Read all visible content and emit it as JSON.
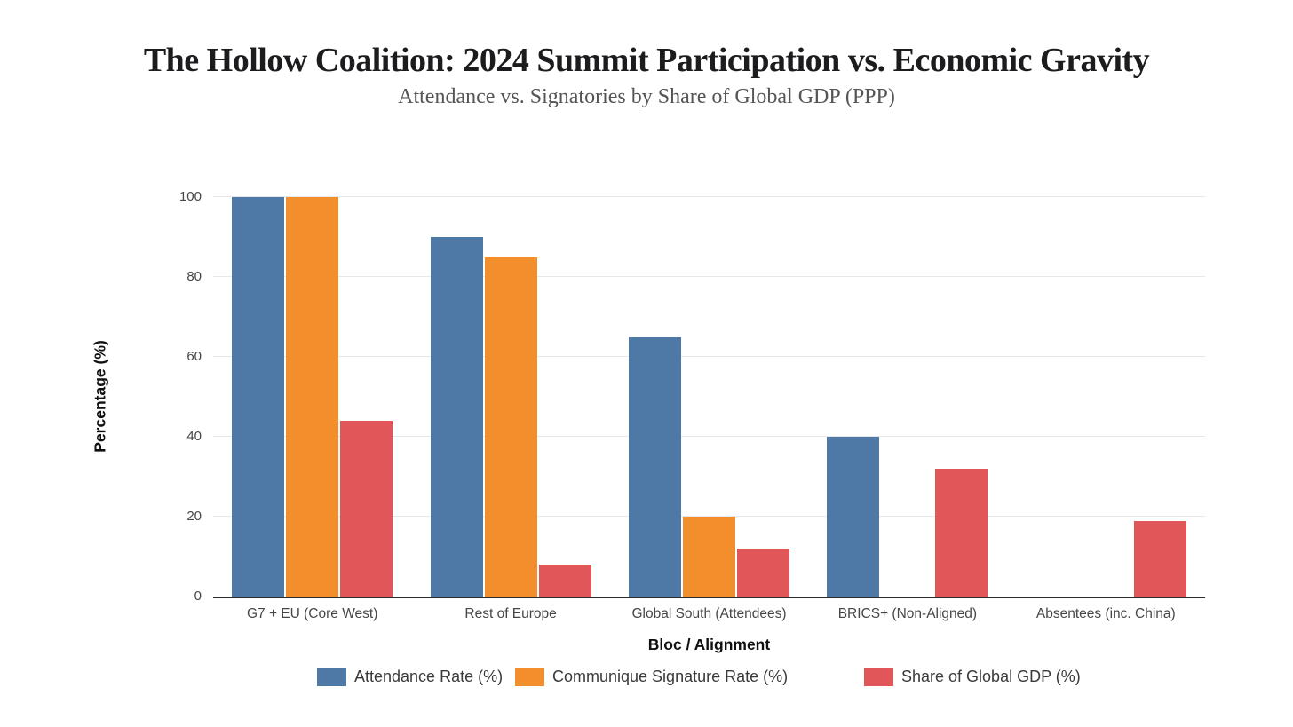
{
  "chart_data": {
    "type": "bar",
    "title": "The Hollow Coalition: 2024 Summit Participation vs. Economic Gravity",
    "subtitle": "Attendance vs. Signatories by Share of Global GDP (PPP)",
    "xlabel": "Bloc / Alignment",
    "ylabel": "Percentage (%)",
    "categories": [
      "G7 + EU (Core West)",
      "Rest of Europe",
      "Global South (Attendees)",
      "BRICS+ (Non-Aligned)",
      "Absentees (inc. China)"
    ],
    "series": [
      {
        "name": "Attendance Rate (%)",
        "color": "#4e79a7",
        "values": [
          100,
          90,
          65,
          40,
          0
        ]
      },
      {
        "name": "Communique Signature Rate (%)",
        "color": "#f28e2b",
        "values": [
          100,
          85,
          20,
          0,
          0
        ]
      },
      {
        "name": "Share of Global GDP (%)",
        "color": "#e15759",
        "values": [
          44,
          8,
          12,
          32,
          19
        ]
      }
    ],
    "ylim": [
      0,
      100
    ],
    "yticks": [
      0,
      20,
      40,
      60,
      80,
      100
    ],
    "grid": true,
    "legend_position": "bottom"
  },
  "colors": {
    "background": "#ffffff",
    "grid": "#e7e7ec",
    "axis_line": "#2b2b2b",
    "tick_label": "#464646",
    "title": "#1c1c1f",
    "subtitle": "#555555"
  }
}
